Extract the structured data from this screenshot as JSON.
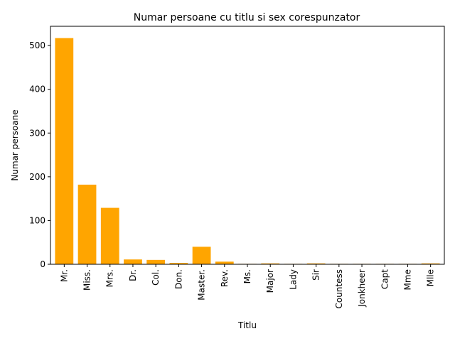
{
  "chart_data": {
    "type": "bar",
    "title": "Numar persoane cu titlu si sex corespunzator",
    "xlabel": "Titlu",
    "ylabel": "Numar persoane",
    "categories": [
      "Mr.",
      "Miss.",
      "Mrs.",
      "Dr.",
      "Col.",
      "Don.",
      "Master.",
      "Rev.",
      "Ms.",
      "Major",
      "Lady",
      "Sir",
      "Countess",
      "Jonkheer",
      "Capt",
      "Mme",
      "Mlle"
    ],
    "values": [
      517,
      182,
      129,
      11,
      10,
      3,
      40,
      6,
      1,
      2,
      1,
      2,
      1,
      1,
      1,
      1,
      2
    ],
    "ylim": [
      0,
      544
    ],
    "yticks": [
      0,
      100,
      200,
      300,
      400,
      500
    ],
    "bar_color": "#ffa500",
    "grid": false,
    "legend": false
  }
}
